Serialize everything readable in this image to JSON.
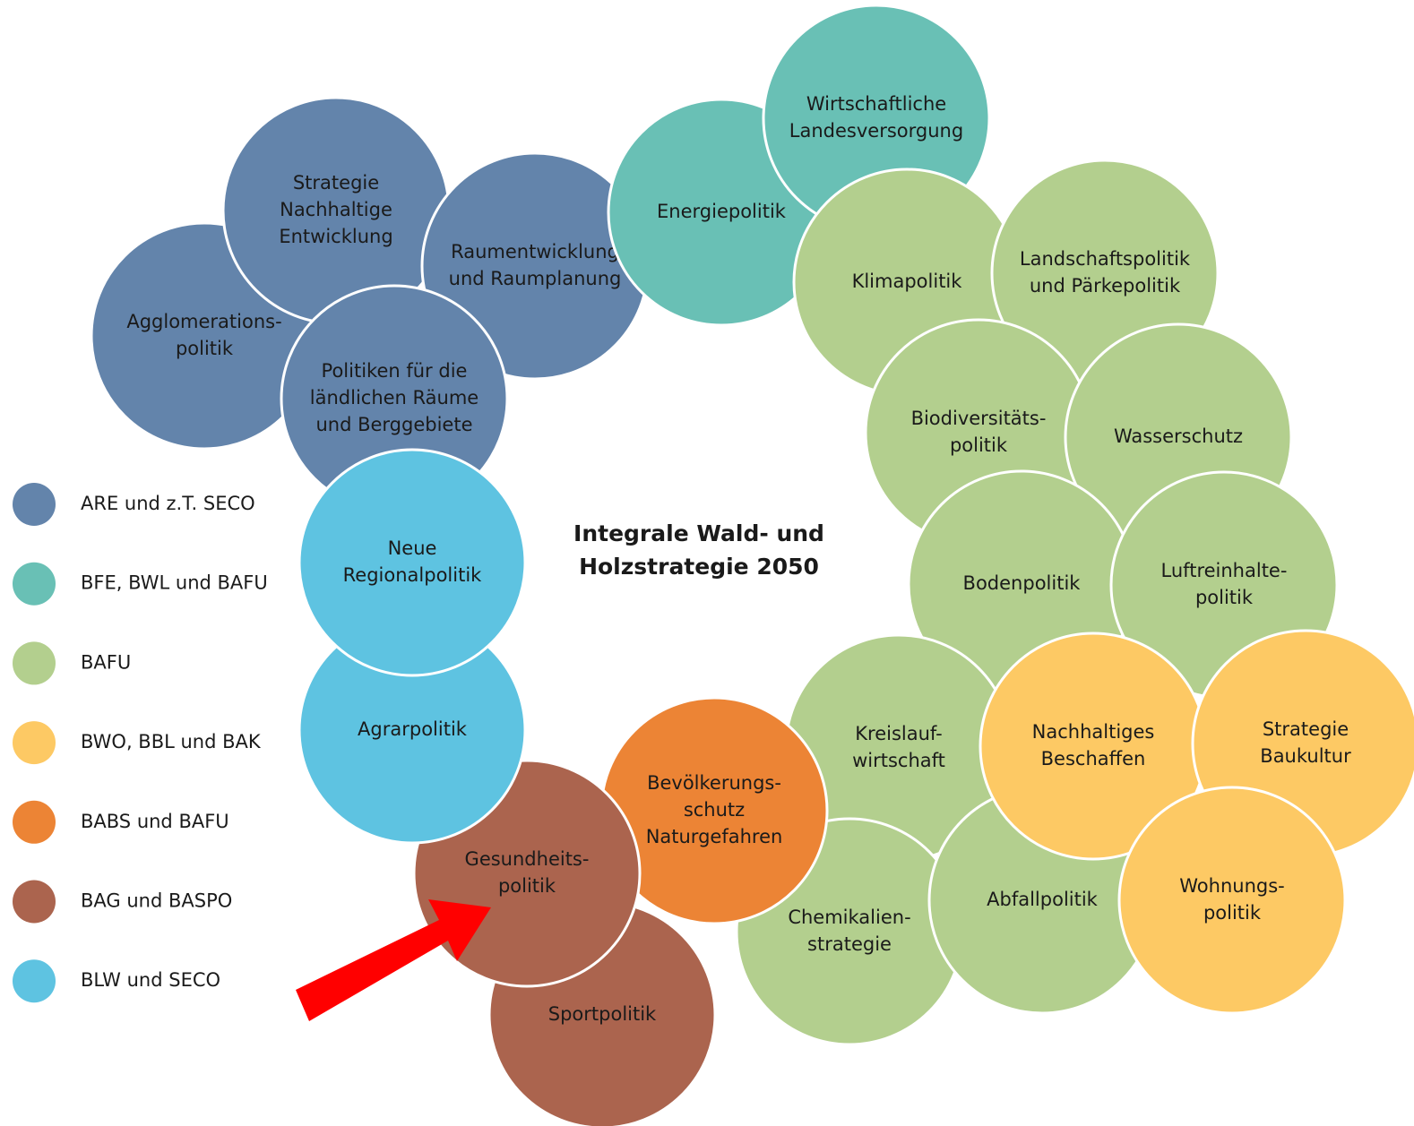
{
  "title": [
    "Integrale Wald- und",
    "Holzstrategie 2050"
  ],
  "legend": [
    {
      "label": "ARE und z.T. SECO",
      "color": "#6384ab"
    },
    {
      "label": "BFE, BWL und BAFU",
      "color": "#69c0b5"
    },
    {
      "label": "BAFU",
      "color": "#b3cf8e"
    },
    {
      "label": "BWO, BBL und BAK",
      "color": "#fdc964"
    },
    {
      "label": "BABS und BAFU",
      "color": "#ec8435"
    },
    {
      "label": "BAG und BASPO",
      "color": "#ab644e"
    },
    {
      "label": "BLW und SECO",
      "color": "#5ec3e1"
    }
  ],
  "nodes": [
    {
      "label": [
        "Agglomerations-",
        "politik"
      ],
      "group": 0
    },
    {
      "label": [
        "Strategie",
        "Nachhaltige",
        "Entwicklung"
      ],
      "group": 0
    },
    {
      "label": [
        "Raumentwicklung",
        "und Raumplanung"
      ],
      "group": 0
    },
    {
      "label": [
        "Politiken für die",
        "ländlichen Räume",
        "und Berggebiete"
      ],
      "group": 0
    },
    {
      "label": [
        "Energiepolitik"
      ],
      "group": 1
    },
    {
      "label": [
        "Wirtschaftliche",
        "Landesversorgung"
      ],
      "group": 1
    },
    {
      "label": [
        "Klimapolitik"
      ],
      "group": 2
    },
    {
      "label": [
        "Landschaftspolitik",
        "und Pärkepolitik"
      ],
      "group": 2
    },
    {
      "label": [
        "Biodiversitäts-",
        "politik"
      ],
      "group": 2
    },
    {
      "label": [
        "Wasserschutz"
      ],
      "group": 2
    },
    {
      "label": [
        "Bodenpolitik"
      ],
      "group": 2
    },
    {
      "label": [
        "Luftreinhalte-",
        "politik"
      ],
      "group": 2
    },
    {
      "label": [
        "Kreislauf-",
        "wirtschaft"
      ],
      "group": 2
    },
    {
      "label": [
        "Chemikalien-",
        "strategie"
      ],
      "group": 2
    },
    {
      "label": [
        "Abfallpolitik"
      ],
      "group": 2
    },
    {
      "label": [
        "Nachhaltiges",
        "Beschaffen"
      ],
      "group": 3
    },
    {
      "label": [
        "Strategie",
        "Baukultur"
      ],
      "group": 3
    },
    {
      "label": [
        "Wohnungs-",
        "politik"
      ],
      "group": 3
    },
    {
      "label": [
        "Bevölkerungs-",
        "schutz",
        "Naturgefahren"
      ],
      "group": 4
    },
    {
      "label": [
        "Sportpolitik"
      ],
      "group": 5
    },
    {
      "label": [
        "Gesundheits-",
        "politik"
      ],
      "group": 5
    },
    {
      "label": [
        "Agrarpolitik"
      ],
      "group": 6
    },
    {
      "label": [
        "Neue",
        "Regionalpolitik"
      ],
      "group": 6
    }
  ]
}
